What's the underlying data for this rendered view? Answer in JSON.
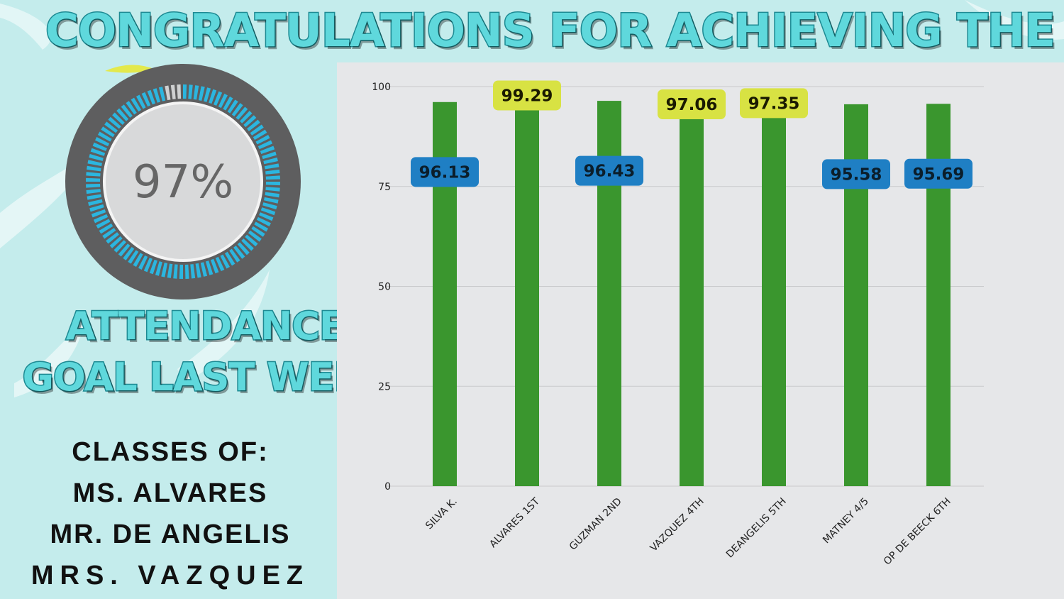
{
  "title_top": "CONGRATULATIONS FOR ACHIEVING THE",
  "title_bottom": [
    "ATTENDANCE",
    "GOAL LAST WEEK"
  ],
  "gauge": {
    "value_text": "97%",
    "value": 97
  },
  "classes": {
    "heading": "CLASSES OF:",
    "names": [
      "MS. ALVARES",
      "MR. DE ANGELIS",
      "MRS. VAZQUEZ"
    ]
  },
  "colors": {
    "background": "#c4ecec",
    "title_fill": "#5fd8dc",
    "bar": "#3a962e",
    "label_blue": "#1f7fc4",
    "label_yellow": "#d8e243",
    "panel": "#e6e7e9"
  },
  "chart_data": {
    "type": "bar",
    "categories": [
      "SILVA K.",
      "ALVARES 1ST",
      "GUZMAN 2ND",
      "VAZQUEZ 4TH",
      "DEANGELIS 5TH",
      "MATNEY 4/5",
      "OP DE BEECK 6TH"
    ],
    "values": [
      96.13,
      99.29,
      96.43,
      97.06,
      97.35,
      95.58,
      95.69
    ],
    "data_labels": [
      "96.13",
      "99.29",
      "96.43",
      "97.06",
      "97.35",
      "95.58",
      "95.69"
    ],
    "label_styles": [
      "blue",
      "yellow",
      "blue",
      "yellow",
      "yellow",
      "blue",
      "blue"
    ],
    "yticks": [
      "0",
      "25",
      "50",
      "75",
      "100"
    ],
    "ylim": [
      0,
      100
    ],
    "grid": true
  }
}
